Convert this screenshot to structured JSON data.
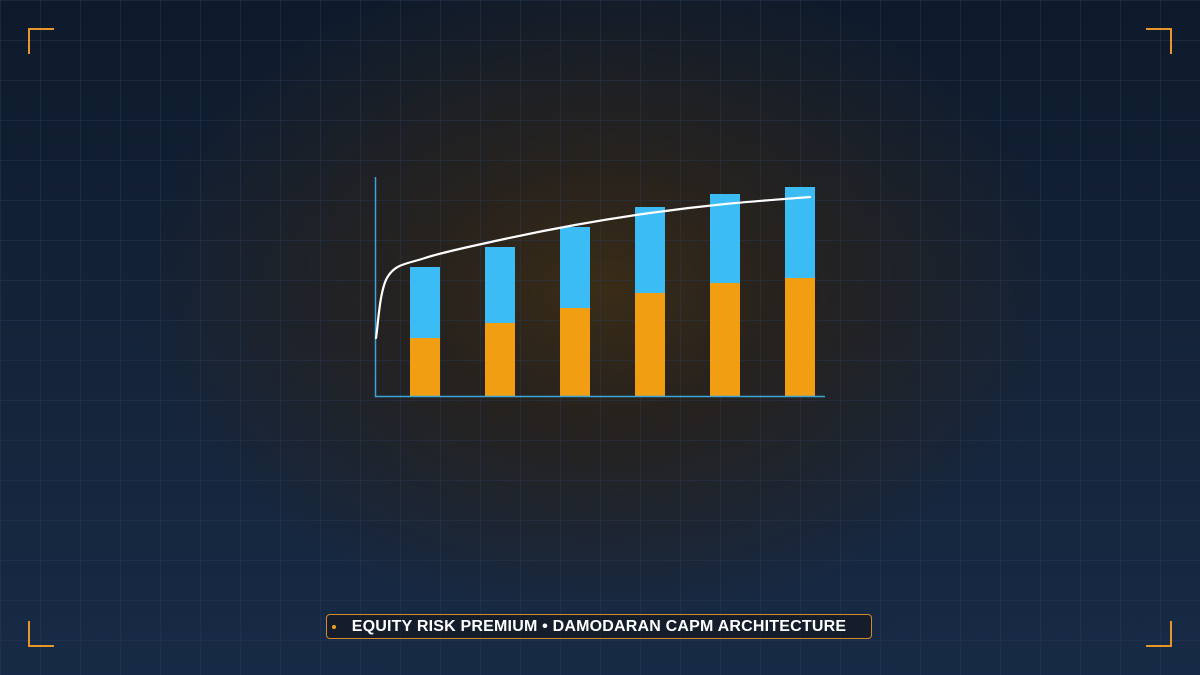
{
  "colors": {
    "bar_bottom": "#f29e12",
    "bar_top": "#3bbcf5",
    "trend_line": "#ffffff",
    "axis": "#3aa6d8",
    "corner_accent": "#e8952a",
    "caption_border": "#d6892a",
    "grid_line": "#2a3a55"
  },
  "caption": {
    "text": "EQUITY RISK PREMIUM • DAMODARAN CAPM ARCHITECTURE"
  },
  "chart_data": {
    "type": "bar",
    "stacked": true,
    "title": "",
    "xlabel": "",
    "ylabel": "",
    "categories": [
      "",
      "",
      "",
      "",
      "",
      ""
    ],
    "ylim": [
      0,
      220
    ],
    "grid": false,
    "legend": "none",
    "series": [
      {
        "color": "#f29e12",
        "values": [
          59,
          74,
          89,
          104,
          114,
          119
        ]
      },
      {
        "color": "#3bbcf5",
        "values": [
          71,
          76,
          81,
          86,
          89,
          91
        ]
      }
    ],
    "trend_line": {
      "type": "line",
      "color": "#ffffff",
      "x": [
        0,
        0.5,
        1,
        2,
        3,
        4,
        5,
        6
      ],
      "y": [
        59,
        120,
        139,
        157,
        172,
        184,
        193,
        200
      ]
    }
  }
}
